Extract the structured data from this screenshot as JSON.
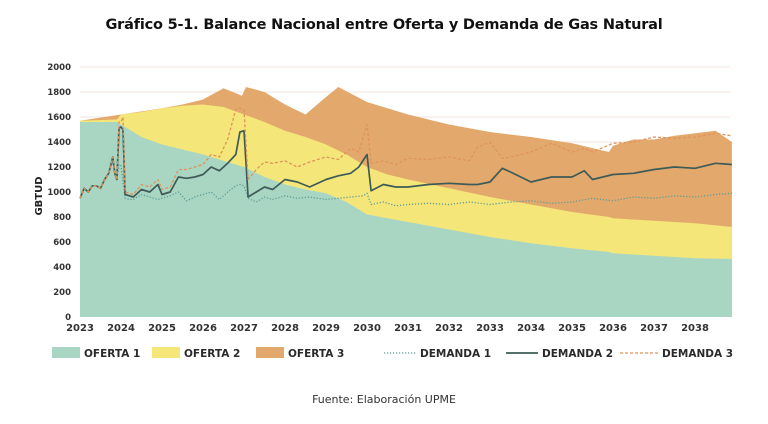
{
  "title": "Gráfico 5-1. Balance Nacional entre Oferta y Demanda de Gas Natural",
  "source": "Fuente: Elaboración UPME",
  "chart_data": {
    "type": "area",
    "title": "Gráfico 5-1. Balance Nacional entre Oferta y Demanda de Gas Natural",
    "xlabel": "",
    "ylabel": "GBTUD",
    "ylim": [
      0,
      2000
    ],
    "xlim": [
      2023,
      2038.9
    ],
    "yticks": [
      0,
      200,
      400,
      600,
      800,
      1000,
      1200,
      1400,
      1600,
      1800,
      2000
    ],
    "xticks": [
      "2023",
      "2024",
      "2025",
      "2026",
      "2027",
      "2028",
      "2029",
      "2030",
      "2031",
      "2032",
      "2033",
      "2034",
      "2035",
      "2036",
      "2037",
      "2038"
    ],
    "grid": true,
    "legend_position": "bottom",
    "stacked_note": "Oferta values are cumulative stacked tops",
    "areas": [
      {
        "name": "OFERTA 3",
        "color": "#e3a96c",
        "x": [
          2023,
          2024,
          2025,
          2025.5,
          2026,
          2026.5,
          2026.95,
          2027.05,
          2027.5,
          2028,
          2028.5,
          2029,
          2029.3,
          2030,
          2031,
          2032,
          2033,
          2034,
          2035,
          2035.9,
          2036,
          2036.5,
          2037,
          2037.5,
          2038,
          2038.5,
          2038.9
        ],
        "top": [
          1570,
          1620,
          1670,
          1700,
          1740,
          1830,
          1770,
          1840,
          1800,
          1700,
          1620,
          1760,
          1840,
          1720,
          1620,
          1540,
          1480,
          1440,
          1390,
          1320,
          1370,
          1420,
          1420,
          1450,
          1470,
          1490,
          1400
        ]
      },
      {
        "name": "OFERTA 2",
        "color": "#f4e678",
        "x": [
          2023,
          2023.9,
          2024,
          2024.5,
          2025,
          2025.5,
          2026,
          2026.5,
          2027,
          2027.5,
          2028,
          2028.5,
          2029,
          2029.5,
          2030,
          2030.5,
          2031,
          2032,
          2033,
          2034,
          2035,
          2035.9,
          2036,
          2037,
          2038,
          2038.9
        ],
        "top": [
          1570,
          1580,
          1620,
          1640,
          1670,
          1690,
          1700,
          1680,
          1620,
          1560,
          1490,
          1440,
          1380,
          1300,
          1200,
          1140,
          1100,
          1030,
          960,
          900,
          840,
          800,
          790,
          770,
          750,
          720
        ]
      },
      {
        "name": "OFERTA 1",
        "color": "#a9d6c2",
        "x": [
          2023,
          2023.9,
          2024.2,
          2024.5,
          2025,
          2025.5,
          2026,
          2026.5,
          2027,
          2027.5,
          2028,
          2028.5,
          2029,
          2029.5,
          2030,
          2030.5,
          2031,
          2032,
          2033,
          2034,
          2035,
          2035.9,
          2036,
          2037,
          2038,
          2038.9
        ],
        "top": [
          1560,
          1560,
          1500,
          1440,
          1380,
          1340,
          1300,
          1250,
          1200,
          1120,
          1060,
          1020,
          990,
          920,
          820,
          790,
          760,
          700,
          640,
          590,
          550,
          520,
          510,
          490,
          470,
          465
        ]
      }
    ],
    "series": [
      {
        "name": "DEMANDA 1",
        "color": "#5f9b96",
        "style": "dotted",
        "x": [
          2023,
          2023.1,
          2023.2,
          2023.3,
          2023.4,
          2023.5,
          2023.6,
          2023.7,
          2023.8,
          2023.85,
          2023.9,
          2023.95,
          2024,
          2024.1,
          2024.2,
          2024.3,
          2024.5,
          2024.7,
          2024.9,
          2025,
          2025.2,
          2025.4,
          2025.6,
          2025.8,
          2026,
          2026.2,
          2026.4,
          2026.6,
          2026.8,
          2026.9,
          2027,
          2027.1,
          2027.3,
          2027.5,
          2027.7,
          2028,
          2028.3,
          2028.6,
          2029,
          2029.3,
          2029.6,
          2029.9,
          2030,
          2030.1,
          2030.4,
          2030.7,
          2031,
          2031.5,
          2032,
          2032.5,
          2033,
          2033.5,
          2034,
          2034.5,
          2035,
          2035.5,
          2036,
          2036.5,
          2037,
          2037.5,
          2038,
          2038.5,
          2038.9
        ],
        "values": [
          950,
          1030,
          1000,
          1050,
          1050,
          1030,
          1100,
          1150,
          1250,
          1150,
          1100,
          1220,
          1210,
          950,
          940,
          940,
          980,
          960,
          940,
          950,
          970,
          1000,
          930,
          960,
          980,
          1000,
          940,
          1000,
          1050,
          1060,
          1050,
          950,
          920,
          960,
          940,
          970,
          950,
          960,
          940,
          950,
          960,
          970,
          990,
          900,
          920,
          890,
          900,
          910,
          900,
          920,
          900,
          920,
          930,
          910,
          920,
          950,
          930,
          960,
          950,
          970,
          960,
          980,
          990
        ]
      },
      {
        "name": "DEMANDA 2",
        "color": "#3e5b57",
        "style": "solid",
        "x": [
          2023,
          2023.1,
          2023.2,
          2023.3,
          2023.4,
          2023.5,
          2023.6,
          2023.7,
          2023.8,
          2023.85,
          2023.9,
          2023.95,
          2024,
          2024.05,
          2024.1,
          2024.3,
          2024.5,
          2024.7,
          2024.9,
          2025,
          2025.2,
          2025.4,
          2025.6,
          2025.8,
          2026,
          2026.2,
          2026.4,
          2026.6,
          2026.8,
          2026.9,
          2027,
          2027.1,
          2027.3,
          2027.5,
          2027.7,
          2028,
          2028.3,
          2028.6,
          2029,
          2029.3,
          2029.6,
          2029.8,
          2030,
          2030.1,
          2030.4,
          2030.7,
          2031,
          2031.5,
          2032,
          2032.5,
          2032.7,
          2033,
          2033.3,
          2033.5,
          2034,
          2034.5,
          2035,
          2035.3,
          2035.5,
          2036,
          2036.5,
          2037,
          2037.5,
          2038,
          2038.5,
          2038.9
        ],
        "values": [
          950,
          1030,
          1000,
          1050,
          1050,
          1030,
          1100,
          1150,
          1280,
          1150,
          1100,
          1510,
          1520,
          1500,
          980,
          960,
          1020,
          1000,
          1060,
          980,
          1000,
          1120,
          1110,
          1120,
          1140,
          1200,
          1170,
          1230,
          1300,
          1480,
          1490,
          960,
          1000,
          1040,
          1020,
          1100,
          1080,
          1040,
          1100,
          1130,
          1150,
          1200,
          1300,
          1010,
          1060,
          1040,
          1040,
          1060,
          1070,
          1060,
          1060,
          1080,
          1190,
          1160,
          1080,
          1120,
          1120,
          1170,
          1100,
          1140,
          1150,
          1180,
          1200,
          1190,
          1230,
          1220
        ]
      },
      {
        "name": "DEMANDA 3",
        "color": "#e0935b",
        "style": "dashed",
        "x": [
          2023,
          2023.1,
          2023.2,
          2023.3,
          2023.4,
          2023.5,
          2023.6,
          2023.7,
          2023.8,
          2023.85,
          2023.9,
          2023.95,
          2024,
          2024.05,
          2024.1,
          2024.3,
          2024.5,
          2024.7,
          2024.9,
          2025,
          2025.2,
          2025.4,
          2025.6,
          2025.8,
          2026,
          2026.2,
          2026.4,
          2026.6,
          2026.8,
          2026.9,
          2027,
          2027.1,
          2027.3,
          2027.5,
          2027.7,
          2028,
          2028.3,
          2028.6,
          2029,
          2029.3,
          2029.6,
          2029.8,
          2030,
          2030.1,
          2030.4,
          2030.7,
          2031,
          2031.5,
          2032,
          2032.5,
          2032.7,
          2033,
          2033.3,
          2033.5,
          2034,
          2034.5,
          2035,
          2035.3,
          2035.5,
          2036,
          2036.5,
          2037,
          2037.5,
          2038,
          2038.5,
          2038.9
        ],
        "values": [
          950,
          1030,
          1000,
          1050,
          1050,
          1030,
          1100,
          1150,
          1280,
          1150,
          1100,
          1560,
          1560,
          1600,
          1000,
          980,
          1060,
          1040,
          1100,
          1020,
          1040,
          1180,
          1180,
          1200,
          1220,
          1300,
          1280,
          1420,
          1660,
          1670,
          1660,
          1100,
          1180,
          1240,
          1230,
          1250,
          1200,
          1240,
          1280,
          1260,
          1350,
          1320,
          1540,
          1230,
          1250,
          1220,
          1270,
          1260,
          1280,
          1250,
          1360,
          1400,
          1270,
          1280,
          1320,
          1390,
          1320,
          1350,
          1320,
          1390,
          1400,
          1440,
          1430,
          1440,
          1470,
          1450
        ]
      }
    ],
    "legend": [
      {
        "label": "OFERTA 1",
        "type": "area",
        "color": "#a9d6c2"
      },
      {
        "label": "OFERTA 2",
        "type": "area",
        "color": "#f4e678"
      },
      {
        "label": "OFERTA 3",
        "type": "area",
        "color": "#e3a96c"
      },
      {
        "label": "DEMANDA 1",
        "type": "line",
        "style": "dotted",
        "color": "#5f9b96"
      },
      {
        "label": "DEMANDA 2",
        "type": "line",
        "style": "solid",
        "color": "#3e5b57"
      },
      {
        "label": "DEMANDA 3",
        "type": "line",
        "style": "dashed",
        "color": "#e0935b"
      }
    ]
  }
}
